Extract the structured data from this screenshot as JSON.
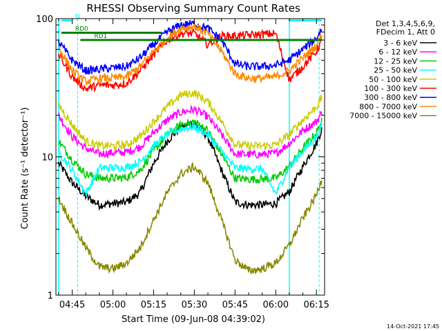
{
  "chart_data": {
    "type": "line",
    "title": "RHESSI Observing Summary Count Rates",
    "xlabel": "Start Time (09-Jun-08 04:39:02)",
    "ylabel": "Count Rate (s⁻¹ detector⁻¹)",
    "y_scale": "log",
    "ylim": [
      1,
      100
    ],
    "xlim": [
      "04:39",
      "06:18"
    ],
    "x_ticks": [
      "04:45",
      "05:00",
      "05:15",
      "05:30",
      "05:45",
      "06:00",
      "06:15"
    ],
    "y_ticks": [
      "1",
      "10",
      "100"
    ],
    "legend_header": [
      "Det 1,3,4,5,6,9,",
      "FDecim 1, Att 0"
    ],
    "legend_position": "right",
    "timestamp": "14-Oct-2021 17:45",
    "x": [
      "04:40",
      "04:45",
      "04:50",
      "04:55",
      "05:00",
      "05:05",
      "05:10",
      "05:15",
      "05:20",
      "05:25",
      "05:30",
      "05:35",
      "05:40",
      "05:45",
      "05:50",
      "05:55",
      "06:00",
      "06:05",
      "06:10",
      "06:15",
      "06:17"
    ],
    "series": [
      {
        "name": "3 - 6 keV",
        "color": "#000000",
        "values": [
          9,
          6.5,
          5.2,
          4.5,
          4.6,
          4.7,
          5.5,
          9,
          13,
          16.5,
          17.5,
          14,
          8,
          4.7,
          4.5,
          4.5,
          4.6,
          5.6,
          8.5,
          12.5,
          16
        ]
      },
      {
        "name": "6 - 12 keV",
        "color": "#ff00ff",
        "values": [
          20,
          14,
          11.5,
          10.5,
          10.7,
          10.8,
          11.8,
          15,
          18.5,
          21,
          22,
          19.5,
          14.5,
          10.5,
          10.4,
          10.4,
          10.6,
          12.5,
          15.5,
          18,
          21
        ]
      },
      {
        "name": "12 - 25 keV",
        "color": "#00cc00",
        "values": [
          13,
          9.5,
          7.5,
          7,
          7,
          7.1,
          8,
          11,
          14.5,
          17,
          18,
          15.5,
          10.5,
          7,
          6.9,
          6.9,
          7,
          8.5,
          11.5,
          15,
          18
        ]
      },
      {
        "name": "25 - 50 keV",
        "color": "#00ffff",
        "values": [
          11,
          8,
          5.4,
          8.3,
          8.3,
          8.4,
          9.2,
          12,
          14.5,
          16,
          16.5,
          14.5,
          11,
          8.3,
          8.2,
          8.2,
          5.4,
          8.5,
          11,
          14,
          17
        ]
      },
      {
        "name": "50 - 100 keV",
        "color": "#cccc00",
        "values": [
          24,
          17,
          13,
          12,
          12,
          12.2,
          14,
          18,
          23,
          28,
          29,
          25,
          18,
          12.3,
          12,
          12,
          12.2,
          14.5,
          18.5,
          23,
          27
        ]
      },
      {
        "name": "100 - 300 keV",
        "color": "#ff0000",
        "values": [
          55,
          38,
          31,
          33,
          33,
          34,
          42,
          55,
          70,
          78,
          78,
          65,
          75,
          75,
          76,
          77,
          78,
          36,
          45,
          58,
          70
        ]
      },
      {
        "name": "300 - 800 keV",
        "color": "#0000ff",
        "values": [
          68,
          50,
          42,
          43,
          44,
          45,
          52,
          65,
          80,
          90,
          92,
          85,
          70,
          47,
          45,
          45,
          46,
          50,
          60,
          72,
          85
        ]
      },
      {
        "name": "800 - 7000 keV",
        "color": "#ff8800",
        "values": [
          62,
          42,
          35,
          37,
          37,
          38,
          45,
          58,
          72,
          85,
          88,
          78,
          58,
          40,
          37,
          37,
          38,
          42,
          52,
          64,
          78
        ]
      },
      {
        "name": "7000 - 15000 keV",
        "color": "#888800",
        "values": [
          5,
          3.3,
          2.2,
          1.6,
          1.55,
          1.7,
          2.2,
          3.5,
          5.5,
          7.5,
          8.5,
          6.5,
          3.5,
          1.8,
          1.5,
          1.55,
          1.7,
          2.3,
          3.6,
          5.3,
          7
        ]
      }
    ],
    "flags": [
      {
        "label": "N",
        "color": "#00ffff",
        "start": "04:41",
        "end": "04:45",
        "level": 97
      },
      {
        "label": "",
        "color": "#00ffff",
        "start": "06:05",
        "end": "06:17",
        "level": 97
      },
      {
        "label": "RD0",
        "color": "#008000",
        "start": "04:41",
        "end": "05:18",
        "level": 79
      },
      {
        "label": "RD1",
        "color": "#008000",
        "start": "04:48",
        "end": "06:17",
        "level": 70
      }
    ],
    "saa_intervals": [
      [
        "04:40",
        "04:47"
      ],
      [
        "06:05",
        "06:16"
      ]
    ]
  }
}
